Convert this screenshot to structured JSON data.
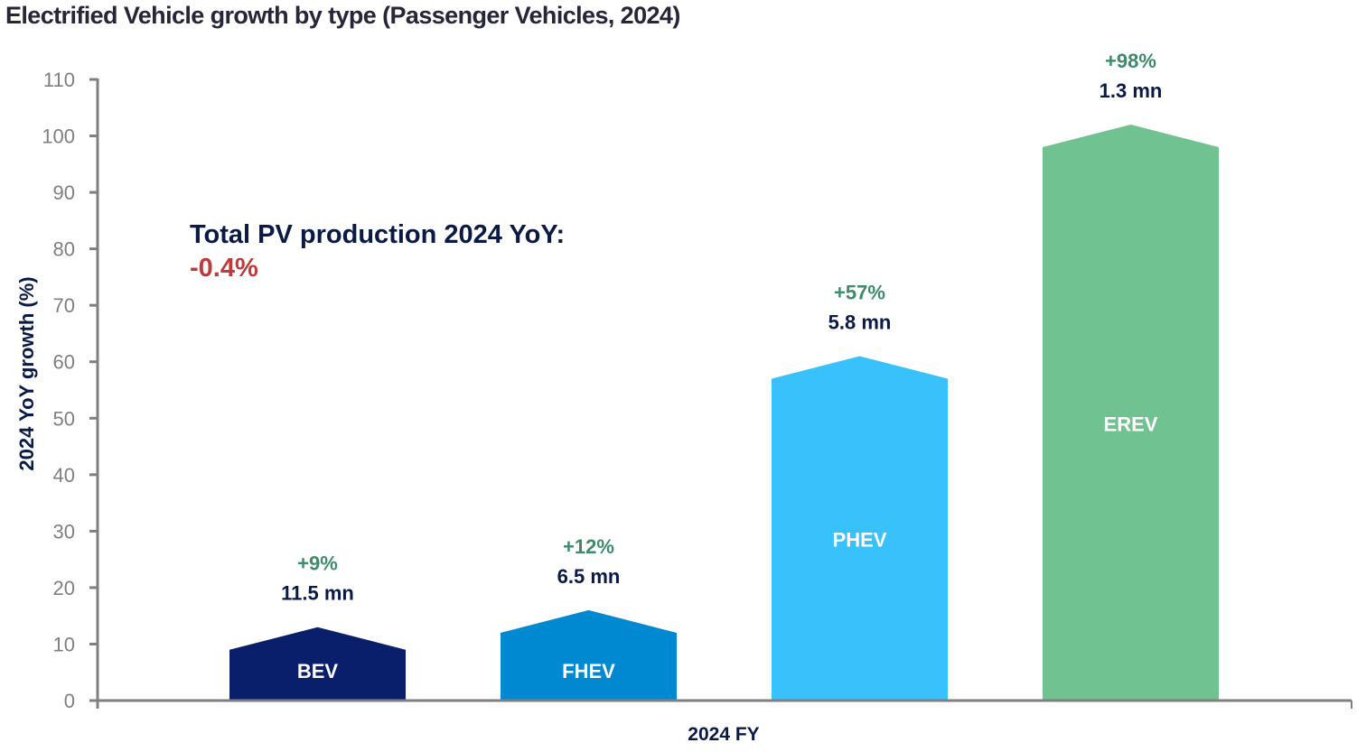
{
  "chart_data": {
    "type": "bar",
    "title": "Electrified Vehicle growth by type (Passenger Vehicles, 2024)",
    "xlabel": "",
    "ylabel": "2024 YoY growth (%)",
    "ylim": [
      0,
      110
    ],
    "yticks": [
      0,
      10,
      20,
      30,
      40,
      50,
      60,
      70,
      80,
      90,
      100,
      110
    ],
    "x_category": "2024 FY",
    "grid": false,
    "bar_shape": "pentagon (house-shaped top)",
    "series": [
      {
        "name": "BEV",
        "value": 9,
        "growth_label": "+9%",
        "volume_label": "11.5 mn",
        "color": "#0a1f6b"
      },
      {
        "name": "FHEV",
        "value": 12,
        "growth_label": "+12%",
        "volume_label": "6.5 mn",
        "color": "#0088d1"
      },
      {
        "name": "PHEV",
        "value": 57,
        "growth_label": "+57%",
        "volume_label": "5.8 mn",
        "color": "#38c1fb"
      },
      {
        "name": "EREV",
        "value": 98,
        "growth_label": "+98%",
        "volume_label": "1.3 mn",
        "color": "#71c291"
      }
    ],
    "annotation": {
      "text": "Total PV production 2024 YoY:",
      "value": "-0.4%",
      "value_color": "#c0393b"
    },
    "axis_color": "#7f7f7f"
  }
}
